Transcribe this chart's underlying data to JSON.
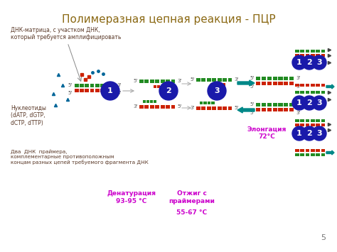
{
  "title": "Полимеразная цепная реакция - ПЦР",
  "title_color": "#8B6914",
  "title_fontsize": 11,
  "label_dna": "ДНК-матрица, с участком ДНК,\nкоторый требуется амплифицировать",
  "label_nucleotides": "Нуклеотиды\n(dATP, dGTP,\ndCTP, dTTP)",
  "label_primers": "Два  ДНК  праймера,\nкомплементарные противоположным\nконцам разных цепей требуемого фрагмента ДНК",
  "label_denaturation_line1": "Денатурация",
  "label_denaturation_line2": "93-95 °C",
  "label_annealing_line1": "Отжиг с",
  "label_annealing_line2": "праймерами",
  "label_annealing_line3": "55-67 °C",
  "label_elongation": "Элонгация\n72°C",
  "accent_color": "#cc00cc",
  "label_color": "#5B3A29",
  "circle_color": "#1a1aaa",
  "strand_green": "#228B22",
  "strand_red": "#cc2200",
  "strand_teal": "#008888",
  "arrow_color": "#008888",
  "dot_color": "#006699",
  "page_number": "5"
}
